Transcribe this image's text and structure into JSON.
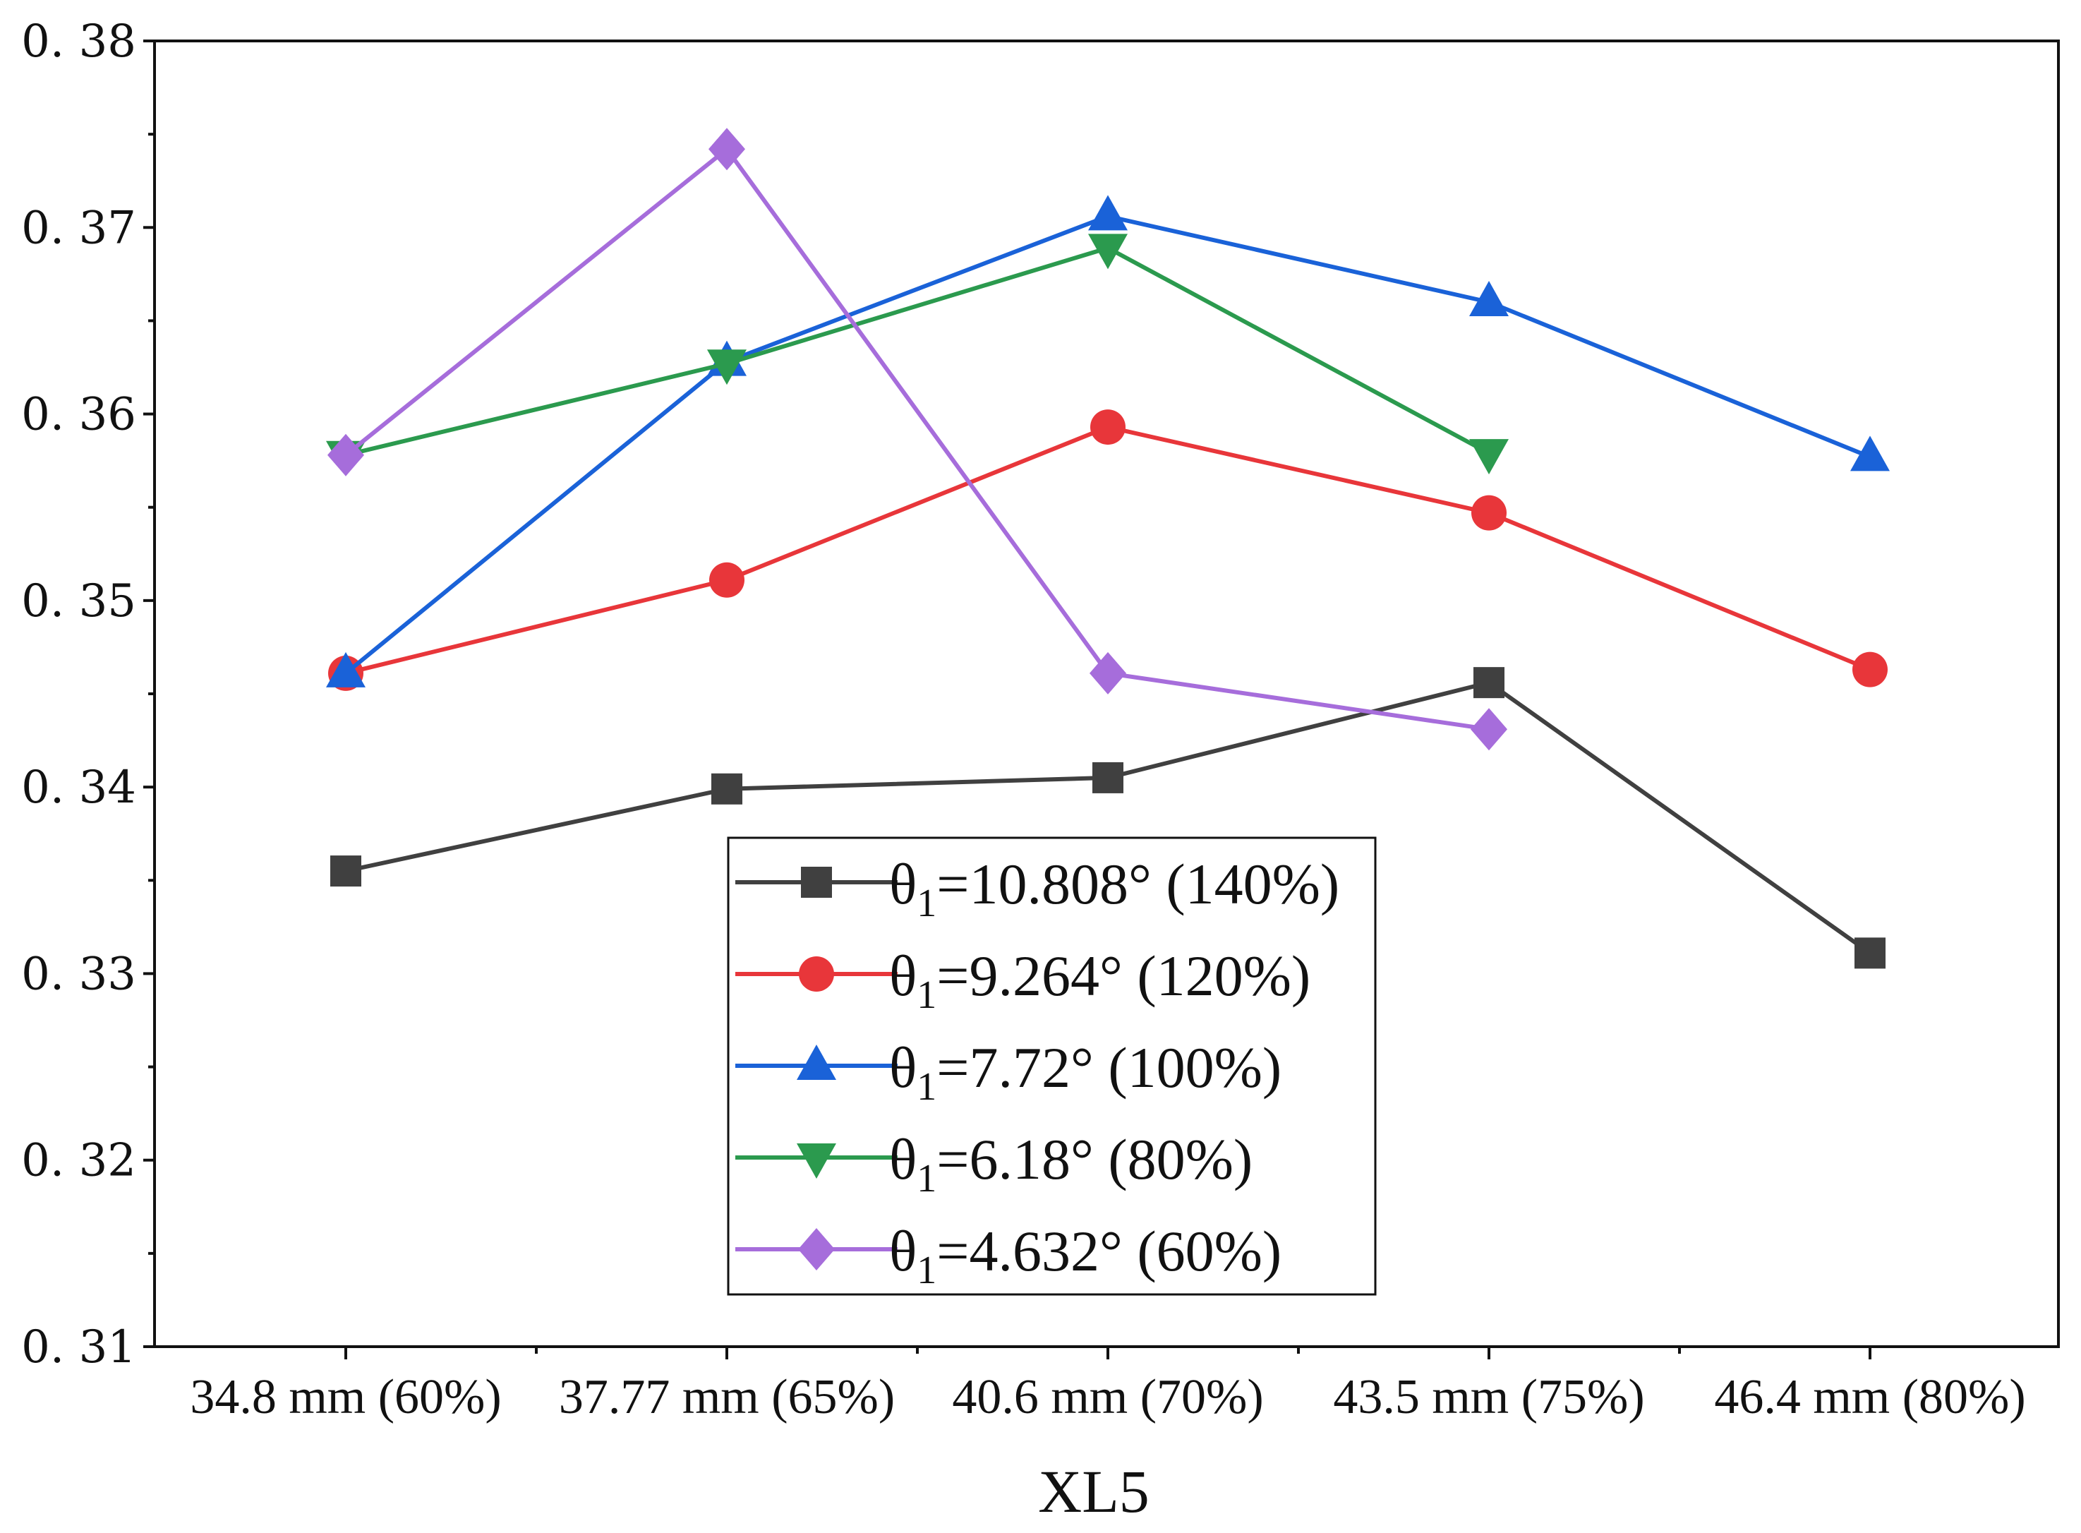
{
  "chart_data": {
    "type": "line",
    "title": "",
    "xlabel": "XL5",
    "ylabel": "",
    "categories": [
      "34.8 mm (60%)",
      "37.77 mm (65%)",
      "40.6 mm (70%)",
      "43.5 mm (75%)",
      "46.4 mm (80%)"
    ],
    "ylim": [
      0.31,
      0.38
    ],
    "yticks": [
      "0. 31",
      "0. 32",
      "0. 33",
      "0. 34",
      "0. 35",
      "0. 36",
      "0. 37",
      "0. 38"
    ],
    "ytick_values": [
      0.31,
      0.32,
      0.33,
      0.34,
      0.35,
      0.36,
      0.37,
      0.38
    ],
    "grid": false,
    "legend_position": "lower-center",
    "series": [
      {
        "name_prefix": "θ",
        "name_sub": "1",
        "name_suffix": "=10.808° (140%)",
        "color": "#404040",
        "marker": "square",
        "values": [
          0.3355,
          0.3399,
          0.3405,
          0.3456,
          0.3311
        ]
      },
      {
        "name_prefix": "θ",
        "name_sub": "1",
        "name_suffix": "=9.264° (120%)",
        "color": "#e8363a",
        "marker": "circle",
        "values": [
          0.3461,
          0.3511,
          0.3593,
          0.3547,
          0.3463
        ]
      },
      {
        "name_prefix": "θ",
        "name_sub": "1",
        "name_suffix": "=7.72° (100%)",
        "color": "#1a62d8",
        "marker": "triangle-up",
        "values": [
          0.3461,
          0.3628,
          0.3706,
          0.366,
          0.3577
        ]
      },
      {
        "name_prefix": "θ",
        "name_sub": "1",
        "name_suffix": "=6.18° (80%)",
        "color": "#2b9a4e",
        "marker": "triangle-down",
        "values": [
          0.3578,
          0.3627,
          0.3689,
          0.3579,
          null
        ]
      },
      {
        "name_prefix": "θ",
        "name_sub": "1",
        "name_suffix": "=4.632° (60%)",
        "color": "#a66ddb",
        "marker": "diamond",
        "values": [
          0.3578,
          0.3742,
          0.3461,
          0.3431,
          null
        ]
      }
    ]
  }
}
